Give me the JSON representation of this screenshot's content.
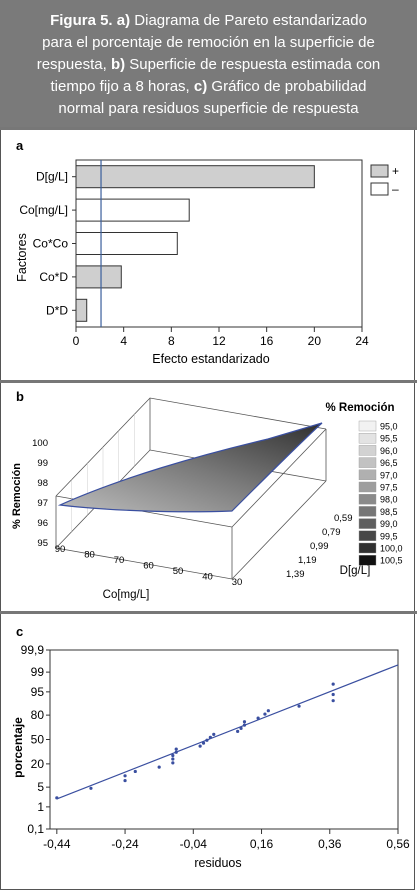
{
  "caption": {
    "figure": "Figura 5.",
    "a_label": "a)",
    "a_text": "Diagrama de Pareto estandarizado para el porcentaje de remoción en la superficie de respuesta,",
    "b_label": "b)",
    "b_text": "Superficie de respuesta estimada con tiempo fijo a 8 horas,",
    "c_label": "c)",
    "c_text": "Gráfico de probabilidad normal para residuos superficie de respuesta",
    "lines": [
      [
        "Figura 5. a)",
        " Diagrama de Pareto estandarizado"
      ],
      [
        "",
        "para el porcentaje de remoción en la superficie de"
      ],
      [
        "",
        "respuesta, ",
        "b)",
        " Superficie de respuesta estimada con"
      ],
      [
        "",
        "tiempo fijo a 8 horas, ",
        "c)",
        " Gráfico de probabilidad"
      ],
      [
        "",
        "normal para residuos superficie de respuesta"
      ]
    ]
  },
  "chart_data": [
    {
      "panel": "a",
      "type": "bar",
      "orientation": "horizontal",
      "categories": [
        "D[g/L]",
        "Co[mg/L]",
        "Co*Co",
        "Co*D",
        "D*D"
      ],
      "values": [
        20,
        9.5,
        8.5,
        3.8,
        0.9
      ],
      "signs": [
        "+",
        "-",
        "-",
        "+",
        "+"
      ],
      "xlabel": "Efecto estandarizado",
      "ylabel": "Factores",
      "xlim": [
        0,
        24
      ],
      "xticks": [
        "0",
        "4",
        "8",
        "12",
        "16",
        "20",
        "24"
      ],
      "reference_line": 2.1,
      "legend": [
        "+",
        "–"
      ],
      "legend_position": "right",
      "colors": {
        "positive": "#cfcfcf",
        "negative": "#ffffff",
        "reference": "#3a5f9c"
      }
    },
    {
      "panel": "b",
      "type": "surface",
      "xlabel": "Co[mg/L]",
      "ylabel": "D[g/L]",
      "zlabel": "% Remoción",
      "xticks": [
        "90",
        "80",
        "70",
        "60",
        "50",
        "40",
        "30"
      ],
      "yticks": [
        "0,59",
        "0,79",
        "0,99",
        "1,19",
        "1,39"
      ],
      "zticks": [
        "95",
        "96",
        "97",
        "98",
        "99",
        "100"
      ],
      "legend_title": "% Remoción",
      "legend": [
        "95,0",
        "95,5",
        "96,0",
        "96,5",
        "97,0",
        "97,5",
        "98,0",
        "98,5",
        "99,0",
        "99,5",
        "100,0",
        "100,5"
      ],
      "legend_colors": [
        "#f2f2f2",
        "#e3e3e3",
        "#d2d2d2",
        "#c2c2c2",
        "#b0b0b0",
        "#9e9e9e",
        "#8a8a8a",
        "#767676",
        "#5f5f5f",
        "#484848",
        "#303030",
        "#111111"
      ],
      "legend_position": "top-right"
    },
    {
      "panel": "c",
      "type": "scatter",
      "xlabel": "residuos",
      "ylabel": "porcentaje",
      "xlim": [
        -0.46,
        0.56
      ],
      "xticks": [
        "-0,44",
        "-0,24",
        "-0,04",
        "0,16",
        "0,36",
        "0,56"
      ],
      "yticks": [
        "0,1",
        "1",
        "5",
        "20",
        "50",
        "80",
        "95",
        "99,9"
      ],
      "yticks_extra": [
        "1",
        "5",
        "20",
        "50",
        "80",
        "95",
        "99",
        "99,9"
      ],
      "ytick_labels": [
        "99,9",
        "99",
        "95",
        "80",
        "50",
        "20",
        "5",
        "1",
        "0,1"
      ],
      "points": [
        {
          "x": -0.44,
          "y": 2.2
        },
        {
          "x": -0.34,
          "y": 4.6
        },
        {
          "x": -0.24,
          "y": 7.8
        },
        {
          "x": -0.24,
          "y": 10.5
        },
        {
          "x": -0.21,
          "y": 13.5
        },
        {
          "x": -0.14,
          "y": 17.0
        },
        {
          "x": -0.1,
          "y": 21.0
        },
        {
          "x": -0.1,
          "y": 25.0
        },
        {
          "x": -0.1,
          "y": 29.0
        },
        {
          "x": -0.09,
          "y": 33.0
        },
        {
          "x": -0.09,
          "y": 37.0
        },
        {
          "x": -0.02,
          "y": 41.0
        },
        {
          "x": -0.01,
          "y": 45.0
        },
        {
          "x": 0.0,
          "y": 49.0
        },
        {
          "x": 0.01,
          "y": 53.0
        },
        {
          "x": 0.02,
          "y": 57.0
        },
        {
          "x": 0.09,
          "y": 61.0
        },
        {
          "x": 0.1,
          "y": 65.0
        },
        {
          "x": 0.11,
          "y": 69.0
        },
        {
          "x": 0.11,
          "y": 73.0
        },
        {
          "x": 0.15,
          "y": 77.0
        },
        {
          "x": 0.17,
          "y": 81.0
        },
        {
          "x": 0.18,
          "y": 84.0
        },
        {
          "x": 0.27,
          "y": 87.5
        },
        {
          "x": 0.37,
          "y": 91.0
        },
        {
          "x": 0.37,
          "y": 94.0
        },
        {
          "x": 0.37,
          "y": 97.2
        }
      ],
      "fit_line": {
        "x0": -0.44,
        "y0": 2.0,
        "x1": 0.56,
        "y1": 99.5
      },
      "colors": {
        "points": "#3a4fa0",
        "line": "#3a4fa0"
      }
    }
  ]
}
